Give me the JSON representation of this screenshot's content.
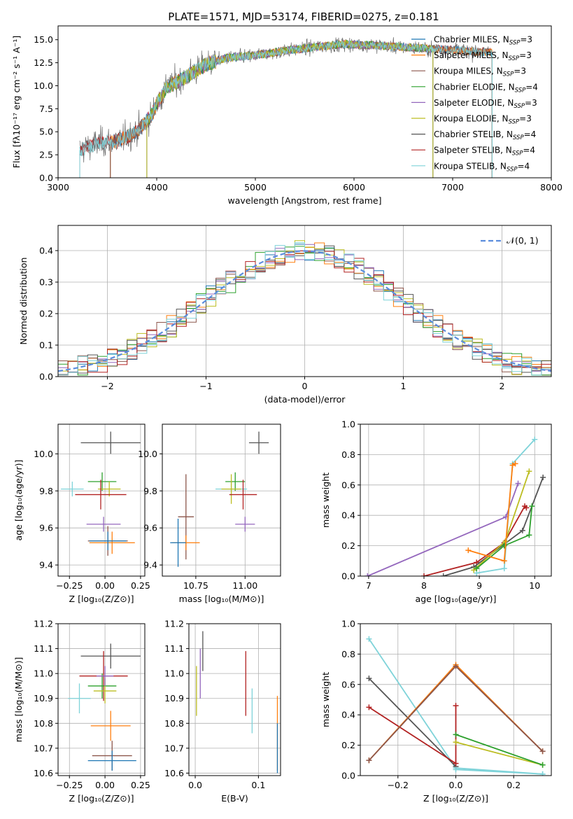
{
  "figure_title": "PLATE=1571, MJD=53174, FIBERID=0275, z=0.181",
  "colors": {
    "Chabrier MILES": "#1f77b4",
    "Salpeter MILES": "#ff7f0e",
    "Kroupa MILES": "#8c564b",
    "Chabrier ELODIE": "#2ca02c",
    "Salpeter ELODIE": "#9467bd",
    "Kroupa ELODIE": "#bcbd22",
    "Chabrier STELIB": "#555555",
    "Salpeter STELIB": "#b22222",
    "Kroupa STELIB": "#7fd3d9"
  },
  "chart_data": [
    {
      "id": "spectrum",
      "type": "line",
      "title": "PLATE=1571, MJD=53174, FIBERID=0275, z=0.181",
      "xlabel": "wavelength [Angstrom, rest frame]",
      "ylabel": "Flux [fλ10⁻¹⁷ erg cm⁻² s⁻¹ A⁻¹]",
      "xlim": [
        3000,
        8000
      ],
      "ylim": [
        0,
        16.5
      ],
      "xticks": [
        "3000",
        "4000",
        "5000",
        "6000",
        "7000",
        "8000"
      ],
      "yticks": [
        "0.0",
        "2.5",
        "5.0",
        "7.5",
        "10.0",
        "12.5",
        "15.0"
      ],
      "legend": [
        {
          "label": "Chabrier MILES, N",
          "sub": "SSP",
          "suffix": "=3"
        },
        {
          "label": "Salpeter MILES, N",
          "sub": "SSP",
          "suffix": "=3"
        },
        {
          "label": "Kroupa MILES, N",
          "sub": "SSP",
          "suffix": "=3"
        },
        {
          "label": "Chabrier ELODIE, N",
          "sub": "SSP",
          "suffix": "=4"
        },
        {
          "label": "Salpeter ELODIE, N",
          "sub": "SSP",
          "suffix": "=3"
        },
        {
          "label": "Kroupa ELODIE, N",
          "sub": "SSP",
          "suffix": "=3"
        },
        {
          "label": "Chabrier STELIB, N",
          "sub": "SSP",
          "suffix": "=4"
        },
        {
          "label": "Salpeter STELIB, N",
          "sub": "SSP",
          "suffix": "=4"
        },
        {
          "label": "Kroupa STELIB, N",
          "sub": "SSP",
          "suffix": "=4"
        }
      ],
      "legend_placement": "top-right",
      "continuum": {
        "x": [
          3220,
          3400,
          3600,
          3800,
          3950,
          4000,
          4100,
          4300,
          4500,
          4700,
          5000,
          5300,
          5600,
          5900,
          6200,
          6500,
          6800,
          7100,
          7400
        ],
        "y": [
          3.0,
          3.8,
          4.0,
          5.0,
          6.8,
          8.0,
          9.8,
          11.0,
          12.3,
          13.0,
          13.3,
          13.8,
          14.2,
          14.5,
          14.4,
          14.2,
          14.0,
          13.8,
          13.6
        ]
      },
      "grid": false
    },
    {
      "id": "residuals",
      "type": "bar",
      "xlabel": "(data-model)/error",
      "ylabel": "Normed distribution",
      "xlim": [
        -2.5,
        2.5
      ],
      "ylim": [
        0,
        0.48
      ],
      "xticks": [
        "−2",
        "−1",
        "0",
        "1",
        "2"
      ],
      "yticks": [
        "0.0",
        "0.1",
        "0.2",
        "0.3",
        "0.4"
      ],
      "legend": {
        "label": "𝒩(0, 1)",
        "placement": "top-right"
      },
      "grid": true,
      "bin_width": 0.1
    },
    {
      "id": "age-vs-z",
      "type": "scatter",
      "xlabel": "Z [log₁₀(Z/Z⊙)]",
      "ylabel": "age  [log₁₀(age/yr)]",
      "xlim": [
        -0.33,
        0.28
      ],
      "ylim": [
        9.34,
        10.16
      ],
      "xticks": [
        "−0.25",
        "0.00",
        "0.25"
      ],
      "yticks": [
        "9.4",
        "9.6",
        "9.8",
        "10.0"
      ],
      "points": [
        {
          "series": "Chabrier STELIB",
          "x": 0.04,
          "y": 10.06,
          "xerr": 0.21,
          "yerr": 0.06
        },
        {
          "series": "Kroupa STELIB",
          "x": -0.23,
          "y": 9.81,
          "xerr": 0.08,
          "yerr": 0.04
        },
        {
          "series": "Chabrier ELODIE",
          "x": -0.02,
          "y": 9.85,
          "xerr": 0.1,
          "yerr": 0.05
        },
        {
          "series": "Kroupa ELODIE",
          "x": 0.03,
          "y": 9.81,
          "xerr": 0.08,
          "yerr": 0.04
        },
        {
          "series": "Salpeter STELIB",
          "x": -0.03,
          "y": 9.78,
          "xerr": 0.18,
          "yerr": 0.08
        },
        {
          "series": "Salpeter ELODIE",
          "x": -0.01,
          "y": 9.62,
          "xerr": 0.12,
          "yerr": 0.04
        },
        {
          "series": "Kroupa MILES",
          "x": 0.02,
          "y": 9.53,
          "xerr": 0.14,
          "yerr": 0.08
        },
        {
          "series": "Salpeter MILES",
          "x": 0.05,
          "y": 9.52,
          "xerr": 0.16,
          "yerr": 0.06
        },
        {
          "series": "Chabrier MILES",
          "x": 0.02,
          "y": 9.53,
          "xerr": 0.13,
          "yerr": 0.05
        }
      ],
      "grid": true
    },
    {
      "id": "age-vs-mass",
      "type": "scatter",
      "xlabel": "mass [log₁₀(M/M⊙)]",
      "ylabel": "",
      "xlim": [
        10.58,
        11.18
      ],
      "ylim": [
        9.34,
        10.16
      ],
      "xticks": [
        "10.75",
        "11.00"
      ],
      "yticks": [
        "9.4",
        "9.6",
        "9.8",
        "10.0"
      ],
      "points": [
        {
          "series": "Chabrier STELIB",
          "x": 11.07,
          "y": 10.06,
          "xerr": 0.05,
          "yerr": 0.06
        },
        {
          "series": "Kroupa STELIB",
          "x": 10.93,
          "y": 9.81,
          "xerr": 0.08,
          "yerr": 0.04
        },
        {
          "series": "Chabrier ELODIE",
          "x": 10.95,
          "y": 9.85,
          "xerr": 0.05,
          "yerr": 0.05
        },
        {
          "series": "Kroupa ELODIE",
          "x": 10.93,
          "y": 9.81,
          "xerr": 0.05,
          "yerr": 0.08
        },
        {
          "series": "Salpeter STELIB",
          "x": 10.99,
          "y": 9.78,
          "xerr": 0.07,
          "yerr": 0.08
        },
        {
          "series": "Salpeter ELODIE",
          "x": 11.0,
          "y": 9.62,
          "xerr": 0.05,
          "yerr": 0.04
        },
        {
          "series": "Kroupa MILES",
          "x": 10.7,
          "y": 9.66,
          "xerr": 0.04,
          "yerr": 0.23
        },
        {
          "series": "Salpeter MILES",
          "x": 10.7,
          "y": 9.52,
          "xerr": 0.07,
          "yerr": 0.04
        },
        {
          "series": "Chabrier MILES",
          "x": 10.66,
          "y": 9.52,
          "xerr": 0.04,
          "yerr": 0.13
        }
      ],
      "grid": true
    },
    {
      "id": "massweight-vs-age",
      "type": "line",
      "xlabel": "age  [log₁₀(age/yr)]",
      "ylabel": "mass weight",
      "xlim": [
        6.85,
        10.3
      ],
      "ylim": [
        0,
        1.0
      ],
      "xticks": [
        "7",
        "8",
        "9",
        "10"
      ],
      "yticks": [
        "0.0",
        "0.2",
        "0.4",
        "0.6",
        "0.8",
        "1.0"
      ],
      "series": [
        {
          "name": "Salpeter ELODIE",
          "x": [
            6.98,
            9.48,
            9.7
          ],
          "y": [
            0.0,
            0.39,
            0.61
          ]
        },
        {
          "name": "Salpeter STELIB",
          "x": [
            8.0,
            8.95,
            9.45,
            9.82,
            9.85
          ],
          "y": [
            0.0,
            0.09,
            0.22,
            0.46,
            0.45
          ]
        },
        {
          "name": "Chabrier STELIB",
          "x": [
            8.35,
            8.9,
            9.45,
            9.78,
            10.15
          ],
          "y": [
            0.0,
            0.06,
            0.21,
            0.3,
            0.65
          ]
        },
        {
          "name": "Kroupa STELIB",
          "x": [
            8.95,
            9.45,
            9.6,
            10.0
          ],
          "y": [
            0.02,
            0.05,
            0.74,
            0.9
          ]
        },
        {
          "name": "Kroupa ELODIE",
          "x": [
            8.9,
            9.47,
            9.9
          ],
          "y": [
            0.04,
            0.23,
            0.69
          ]
        },
        {
          "name": "Chabrier ELODIE",
          "x": [
            8.95,
            9.45,
            9.9,
            9.95
          ],
          "y": [
            0.05,
            0.2,
            0.27,
            0.46
          ]
        },
        {
          "name": "Salpeter MILES",
          "x": [
            8.8,
            9.45,
            9.6,
            9.65
          ],
          "y": [
            0.17,
            0.1,
            0.73,
            0.74
          ]
        }
      ],
      "grid": true
    },
    {
      "id": "mass-vs-z",
      "type": "scatter",
      "xlabel": "Z [log₁₀(Z/Z⊙)]",
      "ylabel": "mass [log₁₀(M/M⊙)]",
      "xlim": [
        -0.33,
        0.28
      ],
      "ylim": [
        10.59,
        11.2
      ],
      "xticks": [
        "−0.25",
        "0.00",
        "0.25"
      ],
      "yticks": [
        "10.6",
        "10.7",
        "10.8",
        "10.9",
        "11.0",
        "11.1",
        "11.2"
      ],
      "points": [
        {
          "series": "Chabrier STELIB",
          "x": 0.04,
          "y": 11.07,
          "xerr": 0.21,
          "yerr": 0.05
        },
        {
          "series": "Salpeter STELIB",
          "x": -0.01,
          "y": 10.99,
          "xerr": 0.17,
          "yerr": 0.1
        },
        {
          "series": "Chabrier ELODIE",
          "x": -0.02,
          "y": 10.95,
          "xerr": 0.1,
          "yerr": 0.05
        },
        {
          "series": "Kroupa ELODIE",
          "x": 0.0,
          "y": 10.93,
          "xerr": 0.08,
          "yerr": 0.05
        },
        {
          "series": "Kroupa STELIB",
          "x": -0.18,
          "y": 10.9,
          "xerr": 0.08,
          "yerr": 0.06
        },
        {
          "series": "Salpeter ELODIE",
          "x": 0.0,
          "y": 10.99,
          "xerr": 0.06,
          "yerr": 0.04
        },
        {
          "series": "Salpeter MILES",
          "x": 0.04,
          "y": 10.79,
          "xerr": 0.14,
          "yerr": 0.06
        },
        {
          "series": "Kroupa MILES",
          "x": 0.05,
          "y": 10.67,
          "xerr": 0.14,
          "yerr": 0.06
        },
        {
          "series": "Chabrier MILES",
          "x": 0.05,
          "y": 10.65,
          "xerr": 0.17,
          "yerr": 0.04
        }
      ],
      "grid": true
    },
    {
      "id": "mass-vs-ebv",
      "type": "scatter",
      "xlabel": "E(B-V)",
      "ylabel": "",
      "xlim": [
        -0.01,
        0.135
      ],
      "ylim": [
        10.59,
        11.2
      ],
      "xticks": [
        "0.0",
        "0.1"
      ],
      "yticks": [
        "10.6",
        "10.7",
        "10.8",
        "10.9",
        "11.0",
        "11.1",
        "11.2"
      ],
      "points": [
        {
          "series": "Chabrier STELIB",
          "x": 0.012,
          "y": 11.09,
          "yerr": 0.08
        },
        {
          "series": "Salpeter ELODIE",
          "x": 0.008,
          "y": 11.0,
          "yerr": 0.1
        },
        {
          "series": "Kroupa ELODIE",
          "x": 0.002,
          "y": 10.93,
          "yerr": 0.1
        },
        {
          "series": "Salpeter STELIB",
          "x": 0.08,
          "y": 10.96,
          "yerr": 0.13
        },
        {
          "series": "Kroupa STELIB",
          "x": 0.09,
          "y": 10.85,
          "yerr": 0.09
        },
        {
          "series": "Salpeter MILES",
          "x": 0.13,
          "y": 10.76,
          "yerr": 0.15
        },
        {
          "series": "Chabrier MILES",
          "x": 0.13,
          "y": 10.7,
          "yerr": 0.1
        }
      ],
      "grid": true
    },
    {
      "id": "massweight-vs-z",
      "type": "line",
      "xlabel": "Z [log₁₀(Z/Z⊙)]",
      "ylabel": "mass weight",
      "xlim": [
        -0.33,
        0.33
      ],
      "ylim": [
        0,
        1.0
      ],
      "xticks": [
        "−0.2",
        "0.0",
        "0.2"
      ],
      "yticks": [
        "0.0",
        "0.2",
        "0.4",
        "0.6",
        "0.8",
        "1.0"
      ],
      "series": [
        {
          "name": "Kroupa STELIB",
          "x": [
            -0.3,
            0.0,
            0.3
          ],
          "y": [
            0.9,
            0.05,
            0.01
          ]
        },
        {
          "name": "Chabrier STELIB",
          "x": [
            -0.3,
            0.0
          ],
          "y": [
            0.64,
            0.06
          ]
        },
        {
          "name": "Salpeter STELIB",
          "x": [
            -0.3,
            0.0,
            0.0
          ],
          "y": [
            0.45,
            0.08,
            0.46
          ]
        },
        {
          "name": "Salpeter MILES",
          "x": [
            -0.3,
            0.0,
            0.3
          ],
          "y": [
            0.1,
            0.73,
            0.16
          ]
        },
        {
          "name": "Kroupa MILES",
          "x": [
            -0.3,
            0.0,
            0.3
          ],
          "y": [
            0.1,
            0.72,
            0.16
          ]
        },
        {
          "name": "Kroupa ELODIE",
          "x": [
            0.0,
            0.3
          ],
          "y": [
            0.22,
            0.07
          ]
        },
        {
          "name": "Chabrier ELODIE",
          "x": [
            0.0,
            0.3
          ],
          "y": [
            0.27,
            0.07
          ]
        },
        {
          "name": "Kroupa STELIB",
          "x": [
            0.0,
            0.3
          ],
          "y": [
            0.04,
            0.01
          ]
        }
      ],
      "grid": true
    }
  ]
}
